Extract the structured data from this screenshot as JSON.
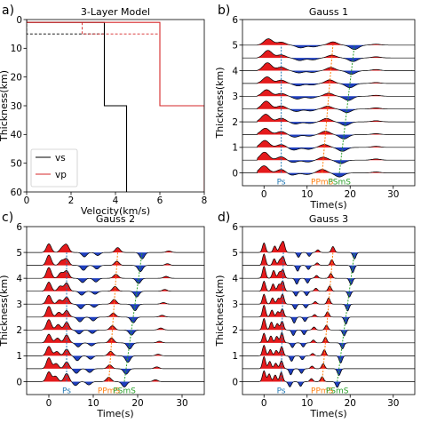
{
  "chart_data": [
    {
      "panel": "a",
      "panel_label": "a)",
      "type": "line",
      "title": "3-Layer Model",
      "xlabel": "Velocity(km/s)",
      "ylabel": "Thickness(km)",
      "xlim": [
        0,
        8
      ],
      "ylim": [
        60,
        0
      ],
      "y_inverted": true,
      "xticks": [
        0,
        2,
        4,
        6,
        8
      ],
      "yticks": [
        0,
        10,
        20,
        30,
        40,
        50,
        60
      ],
      "legend": {
        "placement": "lower-left",
        "entries": [
          "vs",
          "vp"
        ]
      },
      "series": [
        {
          "name": "vs",
          "color": "#000000",
          "points": [
            [
              0,
              0
            ],
            [
              0,
              1
            ],
            [
              3.5,
              1
            ],
            [
              3.5,
              30
            ],
            [
              4.5,
              30
            ],
            [
              4.5,
              60
            ]
          ]
        },
        {
          "name": "vp",
          "color": "#d62728",
          "points": [
            [
              0,
              0
            ],
            [
              0,
              1
            ],
            [
              6,
              1
            ],
            [
              6,
              30
            ],
            [
              8,
              30
            ],
            [
              8,
              60
            ]
          ]
        }
      ],
      "dashed_series": [
        {
          "color": "#000000",
          "points": [
            [
              0,
              0
            ],
            [
              0,
              5
            ],
            [
              3.5,
              5
            ]
          ]
        },
        {
          "color": "#d62728",
          "points": [
            [
              2.5,
              1
            ],
            [
              2.5,
              5
            ],
            [
              6,
              5
            ]
          ]
        }
      ]
    },
    {
      "panel": "b",
      "panel_label": "b)",
      "type": "area",
      "title": "Gauss 1",
      "xlabel": "Time(s)",
      "ylabel": "Thickness(km)",
      "xlim": [
        -5,
        35
      ],
      "ylim": [
        -0.5,
        6
      ],
      "xticks": [
        0,
        10,
        20,
        30
      ],
      "yticks": [
        0,
        1,
        2,
        3,
        4,
        5,
        6
      ],
      "gauss_width": 1.4,
      "trace_offsets": [
        0,
        0.5,
        1,
        1.5,
        2,
        2.5,
        3,
        3.5,
        4,
        4.5,
        5
      ],
      "pulse_amp_scale": 0.28,
      "positive_fill": "#e41a1c",
      "negative_fill": "#1f3fbf",
      "phases": [
        {
          "name": "Ps",
          "color": "#1f77b4",
          "t0": 4,
          "t5": 4
        },
        {
          "name": "PPmS",
          "color": "#ff7f0e",
          "t0": 13.5,
          "t5": 16
        },
        {
          "name": "PSmS",
          "color": "#2ca02c",
          "t0": 17.5,
          "t5": 21
        }
      ],
      "pulses": [
        {
          "t0": 0,
          "t5": 1,
          "amp": 1.0
        },
        {
          "t0": 4,
          "t5": 4,
          "amp": 0.45
        },
        {
          "t0": 13.5,
          "t5": 16,
          "amp": 0.45
        },
        {
          "t0": 17.5,
          "t5": 21,
          "amp": -0.55
        },
        {
          "t0": 6.5,
          "t5": 8.5,
          "amp": -0.35
        },
        {
          "t0": 10,
          "t5": 11.5,
          "amp": -0.25
        },
        {
          "t0": 26,
          "t5": 26,
          "amp": 0.15
        }
      ]
    },
    {
      "panel": "c",
      "panel_label": "c)",
      "type": "area",
      "title": "Gauss 2",
      "xlabel": "Time(s)",
      "ylabel": "Thickness(km)",
      "xlim": [
        -5,
        35
      ],
      "ylim": [
        -0.5,
        6
      ],
      "xticks": [
        0,
        10,
        20,
        30
      ],
      "yticks": [
        0,
        1,
        2,
        3,
        4,
        5,
        6
      ],
      "gauss_width": 0.75,
      "trace_offsets": [
        0,
        0.5,
        1,
        1.5,
        2,
        2.5,
        3,
        3.5,
        4,
        4.5,
        5
      ],
      "pulse_amp_scale": 0.38,
      "positive_fill": "#e41a1c",
      "negative_fill": "#1f3fbf",
      "phases": [
        {
          "name": "Ps",
          "color": "#1f77b4",
          "t0": 4,
          "t5": 4
        },
        {
          "name": "PPmS",
          "color": "#ff7f0e",
          "t0": 13.5,
          "t5": 15.5
        },
        {
          "name": "PSmS",
          "color": "#2ca02c",
          "t0": 17,
          "t5": 21
        }
      ],
      "pulses": [
        {
          "t0": 0,
          "t5": 0,
          "amp": 1.0
        },
        {
          "t0": 1.5,
          "t5": 3,
          "amp": 0.5
        },
        {
          "t0": 4,
          "t5": 4,
          "amp": 0.75
        },
        {
          "t0": 13.5,
          "t5": 15.5,
          "amp": 0.45
        },
        {
          "t0": 17,
          "t5": 21,
          "amp": -0.6
        },
        {
          "t0": 6,
          "t5": 8,
          "amp": -0.45
        },
        {
          "t0": 9,
          "t5": 11,
          "amp": -0.35
        },
        {
          "t0": 24,
          "t5": 27,
          "amp": 0.18
        }
      ]
    },
    {
      "panel": "d",
      "panel_label": "d)",
      "type": "area",
      "title": "Gauss 3",
      "xlabel": "Time(s)",
      "ylabel": "Thickness(km)",
      "xlim": [
        -5,
        35
      ],
      "ylim": [
        -0.5,
        6
      ],
      "xticks": [
        0,
        10,
        20,
        30
      ],
      "yticks": [
        0,
        1,
        2,
        3,
        4,
        5,
        6
      ],
      "gauss_width": 0.5,
      "trace_offsets": [
        0,
        0.5,
        1,
        1.5,
        2,
        2.5,
        3,
        3.5,
        4,
        4.5,
        5
      ],
      "pulse_amp_scale": 0.42,
      "positive_fill": "#e41a1c",
      "negative_fill": "#1f3fbf",
      "phases": [
        {
          "name": "Ps",
          "color": "#1f77b4",
          "t0": 4,
          "t5": 4.5
        },
        {
          "name": "PPmS",
          "color": "#ff7f0e",
          "t0": 13.5,
          "t5": 16
        },
        {
          "name": "PSmS",
          "color": "#2ca02c",
          "t0": 17,
          "t5": 21
        }
      ],
      "pulses": [
        {
          "t0": 0,
          "t5": 0,
          "amp": 1.0
        },
        {
          "t0": 1.2,
          "t5": 2.5,
          "amp": 0.65
        },
        {
          "t0": 2.6,
          "t5": 3.8,
          "amp": 0.55
        },
        {
          "t0": 4,
          "t5": 4.5,
          "amp": 0.85
        },
        {
          "t0": 13.5,
          "t5": 16,
          "amp": 0.5
        },
        {
          "t0": 17,
          "t5": 21,
          "amp": -0.6
        },
        {
          "t0": 6,
          "t5": 8,
          "amp": -0.5
        },
        {
          "t0": 8.5,
          "t5": 10.5,
          "amp": -0.4
        },
        {
          "t0": 11,
          "t5": 12.5,
          "amp": 0.25
        }
      ]
    }
  ]
}
